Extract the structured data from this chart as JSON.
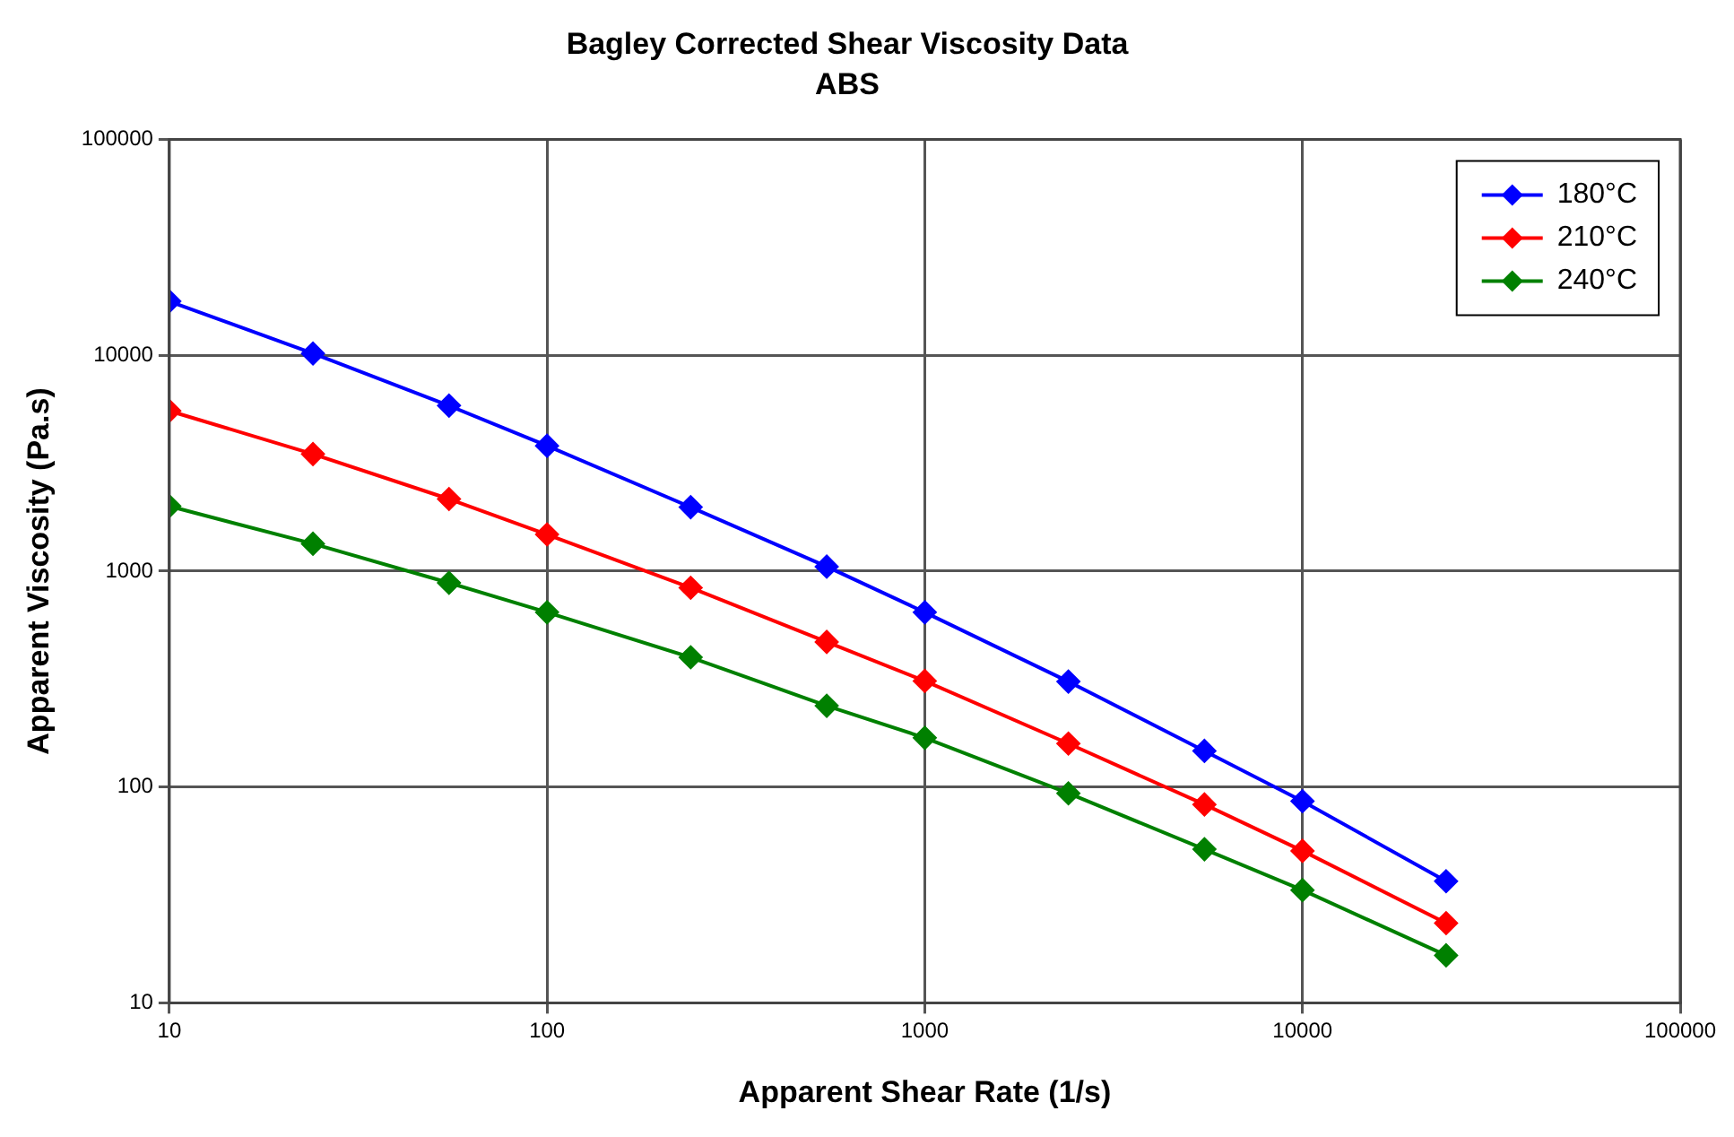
{
  "chart_data": {
    "type": "line",
    "title": "Bagley Corrected Shear Viscosity Data",
    "subtitle": "ABS",
    "xlabel": "Apparent Shear Rate (1/s)",
    "ylabel": "Apparent Viscosity (Pa.s)",
    "x": [
      10,
      24,
      55,
      100,
      240,
      550,
      1000,
      2400,
      5500,
      10000,
      24000
    ],
    "series": [
      {
        "name": "180°C",
        "color": "#0000ff",
        "values": [
          17800,
          10200,
          5850,
          3810,
          1980,
          1050,
          645,
          308,
          147,
          86,
          36.6
        ]
      },
      {
        "name": "210°C",
        "color": "#ff0000",
        "values": [
          5530,
          3490,
          2160,
          1480,
          838,
          470,
          310,
          159,
          83,
          50.6,
          23.4
        ]
      },
      {
        "name": "240°C",
        "color": "#008000",
        "values": [
          2000,
          1340,
          883,
          645,
          399,
          238,
          169,
          93.5,
          51.5,
          33.3,
          16.6
        ]
      }
    ],
    "log": "xy",
    "xlim": [
      10,
      100000
    ],
    "xticks": [
      10,
      100,
      1000,
      10000,
      100000
    ],
    "ylim": [
      10,
      100000
    ],
    "yticks": [
      10,
      100,
      1000,
      10000,
      100000
    ],
    "grid": true,
    "legend": "top right",
    "marker": "diamond",
    "line_style": "solid"
  }
}
